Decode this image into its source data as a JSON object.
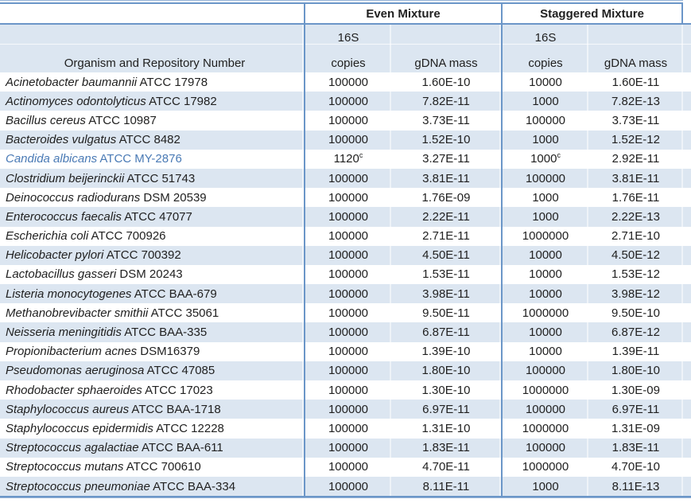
{
  "header": {
    "organism_column": "Organism and Repository Number",
    "groups": [
      {
        "label": "Even Mixture"
      },
      {
        "label": "Staggered Mixture"
      }
    ],
    "subcolumns": {
      "copies_line1": "16S",
      "copies_line2": "copies",
      "gdna_mass": "gDNA mass"
    }
  },
  "colors": {
    "band_blue": "#dce6f1",
    "border_blue": "#6b96c8",
    "hairline_blue": "#95b3d7",
    "highlight_text_blue": "#4a7ab5",
    "body_text": "#212121"
  },
  "rows": [
    {
      "name_italic": "Acinetobacter baumannii",
      "name_roman": "ATCC 17978",
      "highlight": false,
      "even": {
        "copies": "100000",
        "copies_sup": "",
        "gdna": "1.60E-10"
      },
      "staggered": {
        "copies": "10000",
        "copies_sup": "",
        "gdna": "1.60E-11"
      }
    },
    {
      "name_italic": "Actinomyces odontolyticus",
      "name_roman": "ATCC 17982",
      "highlight": false,
      "even": {
        "copies": "100000",
        "copies_sup": "",
        "gdna": "7.82E-11"
      },
      "staggered": {
        "copies": "1000",
        "copies_sup": "",
        "gdna": "7.82E-13"
      }
    },
    {
      "name_italic": "Bacillus cereus",
      "name_roman": "ATCC 10987",
      "highlight": false,
      "even": {
        "copies": "100000",
        "copies_sup": "",
        "gdna": "3.73E-11"
      },
      "staggered": {
        "copies": "100000",
        "copies_sup": "",
        "gdna": "3.73E-11"
      }
    },
    {
      "name_italic": "Bacteroides vulgatus",
      "name_roman": "ATCC 8482",
      "highlight": false,
      "even": {
        "copies": "100000",
        "copies_sup": "",
        "gdna": "1.52E-10"
      },
      "staggered": {
        "copies": "1000",
        "copies_sup": "",
        "gdna": "1.52E-12"
      }
    },
    {
      "name_italic": "Candida albicans",
      "name_roman": "ATCC MY-2876",
      "highlight": true,
      "even": {
        "copies": "1120",
        "copies_sup": "c",
        "gdna": "3.27E-11"
      },
      "staggered": {
        "copies": "1000",
        "copies_sup": "c",
        "gdna": "2.92E-11"
      }
    },
    {
      "name_italic": "Clostridium beijerinckii",
      "name_roman": "ATCC 51743",
      "highlight": false,
      "even": {
        "copies": "100000",
        "copies_sup": "",
        "gdna": "3.81E-11"
      },
      "staggered": {
        "copies": "100000",
        "copies_sup": "",
        "gdna": "3.81E-11"
      }
    },
    {
      "name_italic": "Deinococcus radiodurans",
      "name_roman": "DSM 20539",
      "highlight": false,
      "even": {
        "copies": "100000",
        "copies_sup": "",
        "gdna": "1.76E-09"
      },
      "staggered": {
        "copies": "1000",
        "copies_sup": "",
        "gdna": "1.76E-11"
      }
    },
    {
      "name_italic": "Enterococcus faecalis",
      "name_roman": "ATCC 47077",
      "highlight": false,
      "even": {
        "copies": "100000",
        "copies_sup": "",
        "gdna": "2.22E-11"
      },
      "staggered": {
        "copies": "1000",
        "copies_sup": "",
        "gdna": "2.22E-13"
      }
    },
    {
      "name_italic": "Escherichia coli",
      "name_roman": "ATCC 700926",
      "highlight": false,
      "even": {
        "copies": "100000",
        "copies_sup": "",
        "gdna": "2.71E-11"
      },
      "staggered": {
        "copies": "1000000",
        "copies_sup": "",
        "gdna": "2.71E-10"
      }
    },
    {
      "name_italic": "Helicobacter pylori",
      "name_roman": "ATCC 700392",
      "highlight": false,
      "even": {
        "copies": "100000",
        "copies_sup": "",
        "gdna": "4.50E-11"
      },
      "staggered": {
        "copies": "10000",
        "copies_sup": "",
        "gdna": "4.50E-12"
      }
    },
    {
      "name_italic": "Lactobacillus gasseri",
      "name_roman": "DSM 20243",
      "highlight": false,
      "even": {
        "copies": "100000",
        "copies_sup": "",
        "gdna": "1.53E-11"
      },
      "staggered": {
        "copies": "10000",
        "copies_sup": "",
        "gdna": "1.53E-12"
      }
    },
    {
      "name_italic": "Listeria monocytogenes",
      "name_roman": "ATCC BAA-679",
      "highlight": false,
      "even": {
        "copies": "100000",
        "copies_sup": "",
        "gdna": "3.98E-11"
      },
      "staggered": {
        "copies": "10000",
        "copies_sup": "",
        "gdna": "3.98E-12"
      }
    },
    {
      "name_italic": "Methanobrevibacter smithii",
      "name_roman": "ATCC 35061",
      "highlight": false,
      "even": {
        "copies": "100000",
        "copies_sup": "",
        "gdna": "9.50E-11"
      },
      "staggered": {
        "copies": "1000000",
        "copies_sup": "",
        "gdna": "9.50E-10"
      }
    },
    {
      "name_italic": "Neisseria meningitidis",
      "name_roman": "ATCC BAA-335",
      "highlight": false,
      "even": {
        "copies": "100000",
        "copies_sup": "",
        "gdna": "6.87E-11"
      },
      "staggered": {
        "copies": "10000",
        "copies_sup": "",
        "gdna": "6.87E-12"
      }
    },
    {
      "name_italic": "Propionibacterium acnes",
      "name_roman": "DSM16379",
      "highlight": false,
      "even": {
        "copies": "100000",
        "copies_sup": "",
        "gdna": "1.39E-10"
      },
      "staggered": {
        "copies": "10000",
        "copies_sup": "",
        "gdna": "1.39E-11"
      }
    },
    {
      "name_italic": "Pseudomonas aeruginosa",
      "name_roman": "ATCC 47085",
      "highlight": false,
      "even": {
        "copies": "100000",
        "copies_sup": "",
        "gdna": "1.80E-10"
      },
      "staggered": {
        "copies": "100000",
        "copies_sup": "",
        "gdna": "1.80E-10"
      }
    },
    {
      "name_italic": "Rhodobacter sphaeroides",
      "name_roman": "ATCC 17023",
      "highlight": false,
      "even": {
        "copies": "100000",
        "copies_sup": "",
        "gdna": "1.30E-10"
      },
      "staggered": {
        "copies": "1000000",
        "copies_sup": "",
        "gdna": "1.30E-09"
      }
    },
    {
      "name_italic": "Staphylococcus aureus",
      "name_roman": "ATCC BAA-1718",
      "highlight": false,
      "even": {
        "copies": "100000",
        "copies_sup": "",
        "gdna": "6.97E-11"
      },
      "staggered": {
        "copies": "100000",
        "copies_sup": "",
        "gdna": "6.97E-11"
      }
    },
    {
      "name_italic": "Staphylococcus epidermidis",
      "name_roman": "ATCC 12228",
      "highlight": false,
      "even": {
        "copies": "100000",
        "copies_sup": "",
        "gdna": "1.31E-10"
      },
      "staggered": {
        "copies": "1000000",
        "copies_sup": "",
        "gdna": "1.31E-09"
      }
    },
    {
      "name_italic": "Streptococcus agalactiae",
      "name_roman": "ATCC BAA-611",
      "highlight": false,
      "even": {
        "copies": "100000",
        "copies_sup": "",
        "gdna": "1.83E-11"
      },
      "staggered": {
        "copies": "100000",
        "copies_sup": "",
        "gdna": "1.83E-11"
      }
    },
    {
      "name_italic": "Streptococcus mutans",
      "name_roman": "ATCC 700610",
      "highlight": false,
      "even": {
        "copies": "100000",
        "copies_sup": "",
        "gdna": "4.70E-11"
      },
      "staggered": {
        "copies": "1000000",
        "copies_sup": "",
        "gdna": "4.70E-10"
      }
    },
    {
      "name_italic": "Streptococcus pneumoniae",
      "name_roman": "ATCC BAA-334",
      "highlight": false,
      "even": {
        "copies": "100000",
        "copies_sup": "",
        "gdna": "8.11E-11"
      },
      "staggered": {
        "copies": "1000",
        "copies_sup": "",
        "gdna": "8.11E-13"
      }
    }
  ]
}
